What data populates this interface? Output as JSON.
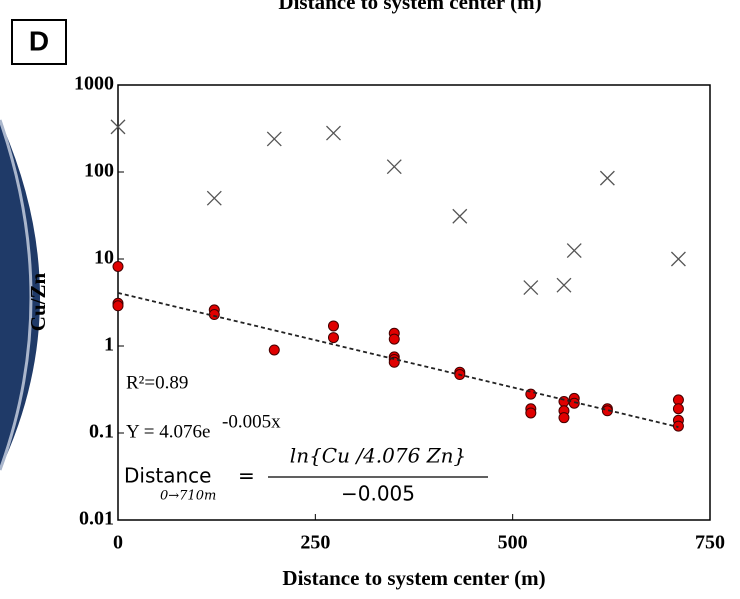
{
  "panel_label": "D",
  "header_label": "Distance to system center (m)",
  "chart_data": {
    "type": "scatter",
    "xlabel": "Distance to system center (m)",
    "ylabel": "Cu/Zn",
    "xlim": [
      0,
      750
    ],
    "xticks": [
      0,
      250,
      500,
      750
    ],
    "ylim": [
      0.01,
      1000
    ],
    "yticks": [
      0.01,
      0.1,
      1,
      10,
      100,
      1000
    ],
    "log_y": true,
    "series": [
      {
        "marker": "x",
        "color": "#555555",
        "x": [
          0,
          122,
          198,
          273,
          350,
          433,
          523,
          565,
          578,
          620,
          710
        ],
        "values": [
          330,
          50,
          240,
          280,
          115,
          31,
          4.7,
          5,
          12.5,
          85,
          10
        ]
      },
      {
        "marker": "circle",
        "color": "#e00000",
        "x": [
          0,
          0,
          0,
          122,
          122,
          198,
          273,
          273,
          350,
          350,
          350,
          350,
          350,
          433,
          433,
          523,
          523,
          523,
          565,
          565,
          565,
          578,
          578,
          620,
          620,
          710,
          710,
          710,
          710
        ],
        "values": [
          8.2,
          3.1,
          2.9,
          2.6,
          2.3,
          0.9,
          1.7,
          1.25,
          1.4,
          1.2,
          0.75,
          0.7,
          0.65,
          0.5,
          0.47,
          0.28,
          0.19,
          0.17,
          0.23,
          0.18,
          0.15,
          0.25,
          0.22,
          0.19,
          0.18,
          0.24,
          0.19,
          0.14,
          0.12
        ]
      },
      {
        "marker": "dashed-line",
        "color": "#222222",
        "x": [
          0,
          710
        ],
        "values": [
          4.076,
          0.117
        ]
      }
    ],
    "annotations": [
      "R²=0.89",
      "Y = 4.076e",
      "-0.005x",
      "Distance",
      "0→710m",
      "=",
      "ln{Cu /4.076 Zn}",
      "−0.005"
    ]
  }
}
